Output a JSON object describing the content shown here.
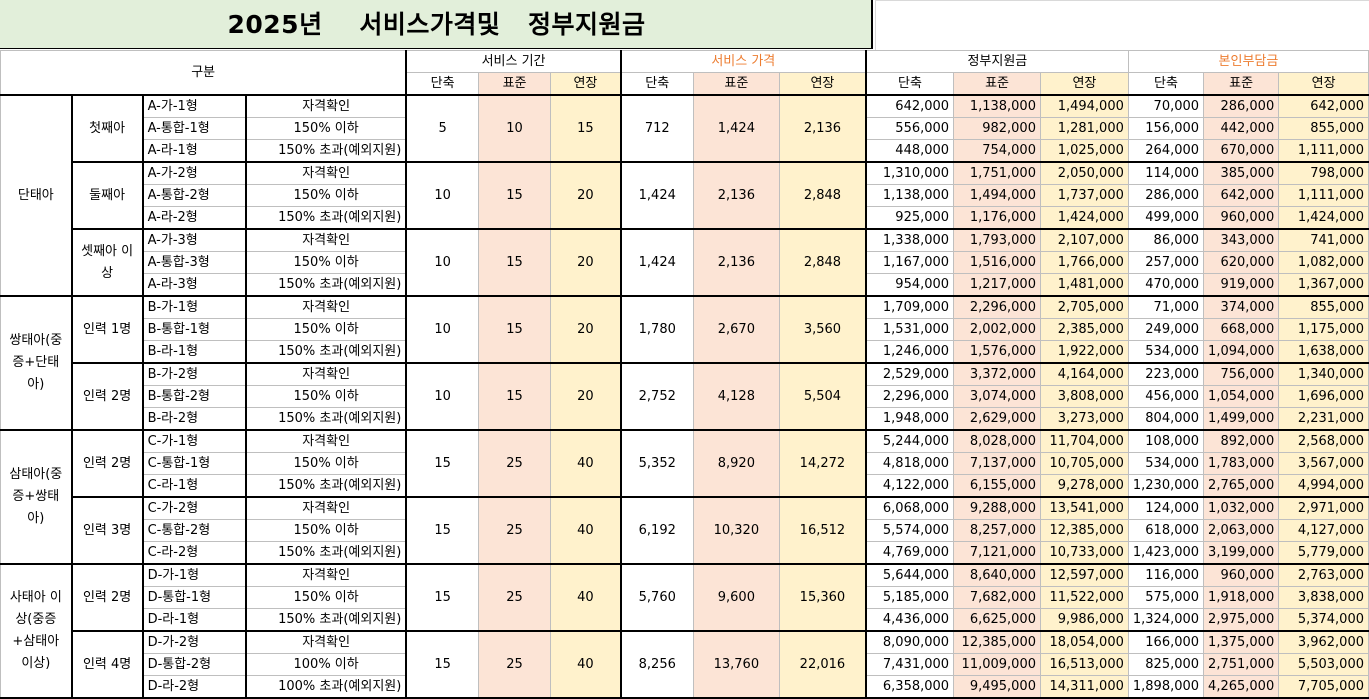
{
  "title": "2025년    서비스가격및   정부지원금",
  "header": {
    "category": "구분",
    "service_period": "서비스 기간",
    "service_price": "서비스 가격",
    "gov_support": "정부지원금",
    "self_pay": "본인부담금",
    "short": "단축",
    "standard": "표준",
    "extended": "연장"
  },
  "colors": {
    "title_bg": "#e2efda",
    "pink": "#fce4d6",
    "yellow": "#fff2cc",
    "orange_text": "#ed7d31"
  },
  "groups": [
    {
      "label": "단태아",
      "subgroups": [
        {
          "label": "첫째아",
          "period": [
            "5",
            "10",
            "15"
          ],
          "price": [
            "712",
            "1,424",
            "2,136"
          ],
          "rows": [
            {
              "code": "A-가-1형",
              "cond": "자격확인",
              "gov": [
                "642,000",
                "1,138,000",
                "1,494,000"
              ],
              "self": [
                "70,000",
                "286,000",
                "642,000"
              ]
            },
            {
              "code": "A-통합-1형",
              "cond": "150% 이하",
              "gov": [
                "556,000",
                "982,000",
                "1,281,000"
              ],
              "self": [
                "156,000",
                "442,000",
                "855,000"
              ]
            },
            {
              "code": "A-라-1형",
              "cond": "150% 초과(예외지원)",
              "gov": [
                "448,000",
                "754,000",
                "1,025,000"
              ],
              "self": [
                "264,000",
                "670,000",
                "1,111,000"
              ]
            }
          ]
        },
        {
          "label": "둘째아",
          "period": [
            "10",
            "15",
            "20"
          ],
          "price": [
            "1,424",
            "2,136",
            "2,848"
          ],
          "rows": [
            {
              "code": "A-가-2형",
              "cond": "자격확인",
              "gov": [
                "1,310,000",
                "1,751,000",
                "2,050,000"
              ],
              "self": [
                "114,000",
                "385,000",
                "798,000"
              ]
            },
            {
              "code": "A-통합-2형",
              "cond": "150% 이하",
              "gov": [
                "1,138,000",
                "1,494,000",
                "1,737,000"
              ],
              "self": [
                "286,000",
                "642,000",
                "1,111,000"
              ]
            },
            {
              "code": "A-라-2형",
              "cond": "150% 초과(예외지원)",
              "gov": [
                "925,000",
                "1,176,000",
                "1,424,000"
              ],
              "self": [
                "499,000",
                "960,000",
                "1,424,000"
              ]
            }
          ]
        },
        {
          "label": "셋째아 이상",
          "period": [
            "10",
            "15",
            "20"
          ],
          "price": [
            "1,424",
            "2,136",
            "2,848"
          ],
          "rows": [
            {
              "code": "A-가-3형",
              "cond": "자격확인",
              "gov": [
                "1,338,000",
                "1,793,000",
                "2,107,000"
              ],
              "self": [
                "86,000",
                "343,000",
                "741,000"
              ]
            },
            {
              "code": "A-통합-3형",
              "cond": "150% 이하",
              "gov": [
                "1,167,000",
                "1,516,000",
                "1,766,000"
              ],
              "self": [
                "257,000",
                "620,000",
                "1,082,000"
              ]
            },
            {
              "code": "A-라-3형",
              "cond": "150% 초과(예외지원)",
              "gov": [
                "954,000",
                "1,217,000",
                "1,481,000"
              ],
              "self": [
                "470,000",
                "919,000",
                "1,367,000"
              ]
            }
          ]
        }
      ]
    },
    {
      "label": "쌍태아(중증+단태아)",
      "subgroups": [
        {
          "label": "인력 1명",
          "period": [
            "10",
            "15",
            "20"
          ],
          "price": [
            "1,780",
            "2,670",
            "3,560"
          ],
          "rows": [
            {
              "code": "B-가-1형",
              "cond": "자격확인",
              "gov": [
                "1,709,000",
                "2,296,000",
                "2,705,000"
              ],
              "self": [
                "71,000",
                "374,000",
                "855,000"
              ]
            },
            {
              "code": "B-통합-1형",
              "cond": "150% 이하",
              "gov": [
                "1,531,000",
                "2,002,000",
                "2,385,000"
              ],
              "self": [
                "249,000",
                "668,000",
                "1,175,000"
              ]
            },
            {
              "code": "B-라-1형",
              "cond": "150% 초과(예외지원)",
              "gov": [
                "1,246,000",
                "1,576,000",
                "1,922,000"
              ],
              "self": [
                "534,000",
                "1,094,000",
                "1,638,000"
              ]
            }
          ]
        },
        {
          "label": "인력 2명",
          "period": [
            "10",
            "15",
            "20"
          ],
          "price": [
            "2,752",
            "4,128",
            "5,504"
          ],
          "rows": [
            {
              "code": "B-가-2형",
              "cond": "자격확인",
              "gov": [
                "2,529,000",
                "3,372,000",
                "4,164,000"
              ],
              "self": [
                "223,000",
                "756,000",
                "1,340,000"
              ]
            },
            {
              "code": "B-통합-2형",
              "cond": "150% 이하",
              "gov": [
                "2,296,000",
                "3,074,000",
                "3,808,000"
              ],
              "self": [
                "456,000",
                "1,054,000",
                "1,696,000"
              ]
            },
            {
              "code": "B-라-2형",
              "cond": "150% 초과(예외지원)",
              "gov": [
                "1,948,000",
                "2,629,000",
                "3,273,000"
              ],
              "self": [
                "804,000",
                "1,499,000",
                "2,231,000"
              ]
            }
          ]
        }
      ]
    },
    {
      "label": "삼태아(중증+쌍태아)",
      "subgroups": [
        {
          "label": "인력 2명",
          "period": [
            "15",
            "25",
            "40"
          ],
          "price": [
            "5,352",
            "8,920",
            "14,272"
          ],
          "rows": [
            {
              "code": "C-가-1형",
              "cond": "자격확인",
              "gov": [
                "5,244,000",
                "8,028,000",
                "11,704,000"
              ],
              "self": [
                "108,000",
                "892,000",
                "2,568,000"
              ]
            },
            {
              "code": "C-통합-1형",
              "cond": "150% 이하",
              "gov": [
                "4,818,000",
                "7,137,000",
                "10,705,000"
              ],
              "self": [
                "534,000",
                "1,783,000",
                "3,567,000"
              ]
            },
            {
              "code": "C-라-1형",
              "cond": "150% 초과(예외지원)",
              "gov": [
                "4,122,000",
                "6,155,000",
                "9,278,000"
              ],
              "self": [
                "1,230,000",
                "2,765,000",
                "4,994,000"
              ]
            }
          ]
        },
        {
          "label": "인력 3명",
          "period": [
            "15",
            "25",
            "40"
          ],
          "price": [
            "6,192",
            "10,320",
            "16,512"
          ],
          "rows": [
            {
              "code": "C-가-2형",
              "cond": "자격확인",
              "gov": [
                "6,068,000",
                "9,288,000",
                "13,541,000"
              ],
              "self": [
                "124,000",
                "1,032,000",
                "2,971,000"
              ]
            },
            {
              "code": "C-통합-2형",
              "cond": "150% 이하",
              "gov": [
                "5,574,000",
                "8,257,000",
                "12,385,000"
              ],
              "self": [
                "618,000",
                "2,063,000",
                "4,127,000"
              ]
            },
            {
              "code": "C-라-2형",
              "cond": "150% 초과(예외지원)",
              "gov": [
                "4,769,000",
                "7,121,000",
                "10,733,000"
              ],
              "self": [
                "1,423,000",
                "3,199,000",
                "5,779,000"
              ]
            }
          ]
        }
      ]
    },
    {
      "label": "사태아 이상(중증+삼태아 이상)",
      "subgroups": [
        {
          "label": "인력 2명",
          "period": [
            "15",
            "25",
            "40"
          ],
          "price": [
            "5,760",
            "9,600",
            "15,360"
          ],
          "rows": [
            {
              "code": "D-가-1형",
              "cond": "자격확인",
              "gov": [
                "5,644,000",
                "8,640,000",
                "12,597,000"
              ],
              "self": [
                "116,000",
                "960,000",
                "2,763,000"
              ]
            },
            {
              "code": "D-통합-1형",
              "cond": "150% 이하",
              "gov": [
                "5,185,000",
                "7,682,000",
                "11,522,000"
              ],
              "self": [
                "575,000",
                "1,918,000",
                "3,838,000"
              ]
            },
            {
              "code": "D-라-1형",
              "cond": "150% 초과(예외지원)",
              "gov": [
                "4,436,000",
                "6,625,000",
                "9,986,000"
              ],
              "self": [
                "1,324,000",
                "2,975,000",
                "5,374,000"
              ]
            }
          ]
        },
        {
          "label": "인력 4명",
          "period": [
            "15",
            "25",
            "40"
          ],
          "price": [
            "8,256",
            "13,760",
            "22,016"
          ],
          "rows": [
            {
              "code": "D-가-2형",
              "cond": "자격확인",
              "gov": [
                "8,090,000",
                "12,385,000",
                "18,054,000"
              ],
              "self": [
                "166,000",
                "1,375,000",
                "3,962,000"
              ]
            },
            {
              "code": "D-통합-2형",
              "cond": "100% 이하",
              "gov": [
                "7,431,000",
                "11,009,000",
                "16,513,000"
              ],
              "self": [
                "825,000",
                "2,751,000",
                "5,503,000"
              ]
            },
            {
              "code": "D-라-2형",
              "cond": "100% 초과(예외지원)",
              "gov": [
                "6,358,000",
                "9,495,000",
                "14,311,000"
              ],
              "self": [
                "1,898,000",
                "4,265,000",
                "7,705,000"
              ]
            }
          ]
        }
      ]
    }
  ]
}
